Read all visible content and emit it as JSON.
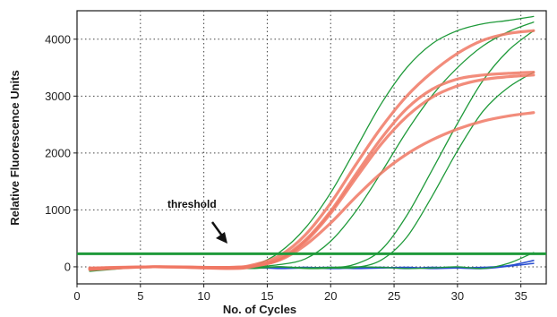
{
  "chart_data": {
    "type": "line",
    "title": "",
    "xlabel": "No. of Cycles",
    "ylabel": "Relative Fluorescence Units",
    "xlim": [
      0,
      37
    ],
    "ylim": [
      -300,
      4500
    ],
    "x_ticks": [
      0,
      5,
      10,
      15,
      20,
      25,
      30,
      35
    ],
    "y_ticks": [
      0,
      1000,
      2000,
      3000,
      4000
    ],
    "grid": true,
    "legend": "none",
    "colors": {
      "green": "#1f9a3a",
      "red": "#f07864",
      "blue": "#2a4fd0",
      "threshold": "#1f9a3a"
    },
    "threshold": {
      "value": 230,
      "label": "threshold"
    },
    "series": [
      {
        "color": "red",
        "x": [
          1,
          6,
          12,
          14,
          16,
          18,
          20,
          22,
          24,
          26,
          28,
          30,
          32,
          34,
          36
        ],
        "y": [
          -40,
          0,
          -10,
          40,
          200,
          560,
          1120,
          1800,
          2450,
          3000,
          3420,
          3750,
          3980,
          4100,
          4150
        ]
      },
      {
        "color": "red",
        "x": [
          1,
          6,
          12,
          14,
          16,
          18,
          20,
          22,
          24,
          26,
          28,
          30,
          32,
          34,
          36
        ],
        "y": [
          -30,
          0,
          -20,
          20,
          150,
          470,
          980,
          1630,
          2260,
          2780,
          3120,
          3300,
          3370,
          3400,
          3420
        ]
      },
      {
        "color": "red",
        "x": [
          1,
          6,
          12,
          14,
          16,
          18,
          20,
          22,
          24,
          26,
          28,
          30,
          32,
          34,
          36
        ],
        "y": [
          -50,
          0,
          -30,
          10,
          130,
          440,
          940,
          1560,
          2160,
          2640,
          2980,
          3180,
          3290,
          3340,
          3370
        ]
      },
      {
        "color": "red",
        "x": [
          1,
          6,
          12,
          14,
          16,
          18,
          20,
          22,
          24,
          26,
          28,
          30,
          32,
          34,
          36
        ],
        "y": [
          -20,
          0,
          -10,
          20,
          120,
          380,
          770,
          1230,
          1650,
          1980,
          2230,
          2420,
          2560,
          2650,
          2710
        ]
      },
      {
        "color": "green",
        "x": [
          1,
          6,
          12,
          14,
          16,
          18,
          20,
          22,
          24,
          26,
          28,
          30,
          32,
          34,
          36
        ],
        "y": [
          -80,
          0,
          -30,
          30,
          260,
          680,
          1300,
          2080,
          2870,
          3500,
          3920,
          4150,
          4270,
          4330,
          4400
        ]
      },
      {
        "color": "green",
        "x": [
          1,
          6,
          12,
          14,
          16,
          18,
          20,
          22,
          24,
          26,
          28,
          30,
          32,
          34,
          36
        ],
        "y": [
          -60,
          0,
          -20,
          0,
          40,
          140,
          450,
          980,
          1660,
          2380,
          3010,
          3500,
          3880,
          4130,
          4300
        ]
      },
      {
        "color": "green",
        "x": [
          1,
          6,
          12,
          14,
          16,
          18,
          20,
          22,
          24,
          26,
          28,
          30,
          32,
          34,
          36
        ],
        "y": [
          -40,
          0,
          -10,
          -10,
          0,
          -30,
          -20,
          50,
          300,
          900,
          1700,
          2520,
          3270,
          3800,
          4150
        ]
      },
      {
        "color": "green",
        "x": [
          1,
          6,
          12,
          14,
          16,
          18,
          20,
          22,
          24,
          26,
          28,
          30,
          32,
          34,
          36
        ],
        "y": [
          -30,
          0,
          -10,
          -10,
          0,
          -20,
          -20,
          -10,
          120,
          520,
          1240,
          2040,
          2730,
          3150,
          3420
        ]
      },
      {
        "color": "green",
        "x": [
          1,
          6,
          12,
          14,
          16,
          18,
          20,
          22,
          24,
          26,
          28,
          30,
          32,
          34,
          36
        ],
        "y": [
          -60,
          0,
          -20,
          -30,
          0,
          -20,
          -10,
          0,
          -10,
          -30,
          -20,
          0,
          -30,
          60,
          250
        ]
      },
      {
        "color": "blue",
        "x": [
          1,
          6,
          12,
          14,
          16,
          18,
          20,
          22,
          24,
          26,
          28,
          30,
          32,
          34,
          36
        ],
        "y": [
          -30,
          10,
          -10,
          -20,
          -20,
          -10,
          -30,
          -20,
          -10,
          -30,
          -10,
          -20,
          -30,
          10,
          60
        ]
      },
      {
        "color": "blue",
        "x": [
          1,
          6,
          12,
          14,
          16,
          18,
          20,
          22,
          24,
          26,
          28,
          30,
          32,
          34,
          36
        ],
        "y": [
          -20,
          0,
          -20,
          -10,
          -30,
          -20,
          -10,
          -30,
          -20,
          -10,
          -30,
          -20,
          -10,
          20,
          110
        ]
      }
    ]
  }
}
